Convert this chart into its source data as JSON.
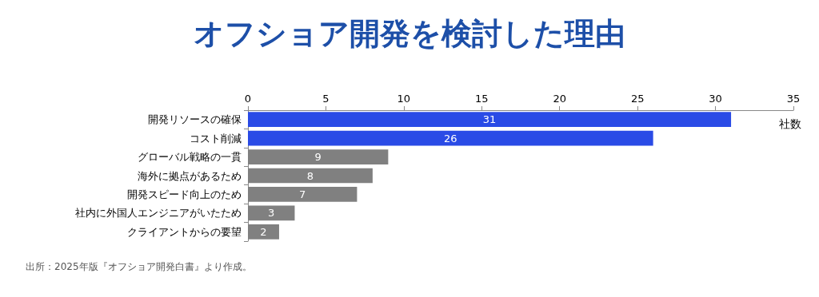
{
  "chart_data": {
    "type": "bar",
    "orientation": "horizontal",
    "title": "オフショア開発を検討した理由",
    "xlabel": "社数",
    "categories": [
      "開発リソースの確保",
      "コスト削減",
      "グローバル戦略の一貫",
      "海外に拠点があるため",
      "開発スピード向上のため",
      "社内に外国人エンジニアがいたため",
      "クライアントからの要望"
    ],
    "values": [
      31,
      26,
      9,
      8,
      7,
      3,
      2
    ],
    "colors": [
      "#2a4be6",
      "#2a4be6",
      "#808080",
      "#808080",
      "#808080",
      "#808080",
      "#808080"
    ],
    "xlim": [
      0,
      35
    ],
    "xticks": [
      0,
      5,
      10,
      15,
      20,
      25,
      30,
      35
    ],
    "grid": false,
    "data_labels": true,
    "annotations": [
      "出所：2025年版『オフショア開発白書』より作成。"
    ]
  }
}
